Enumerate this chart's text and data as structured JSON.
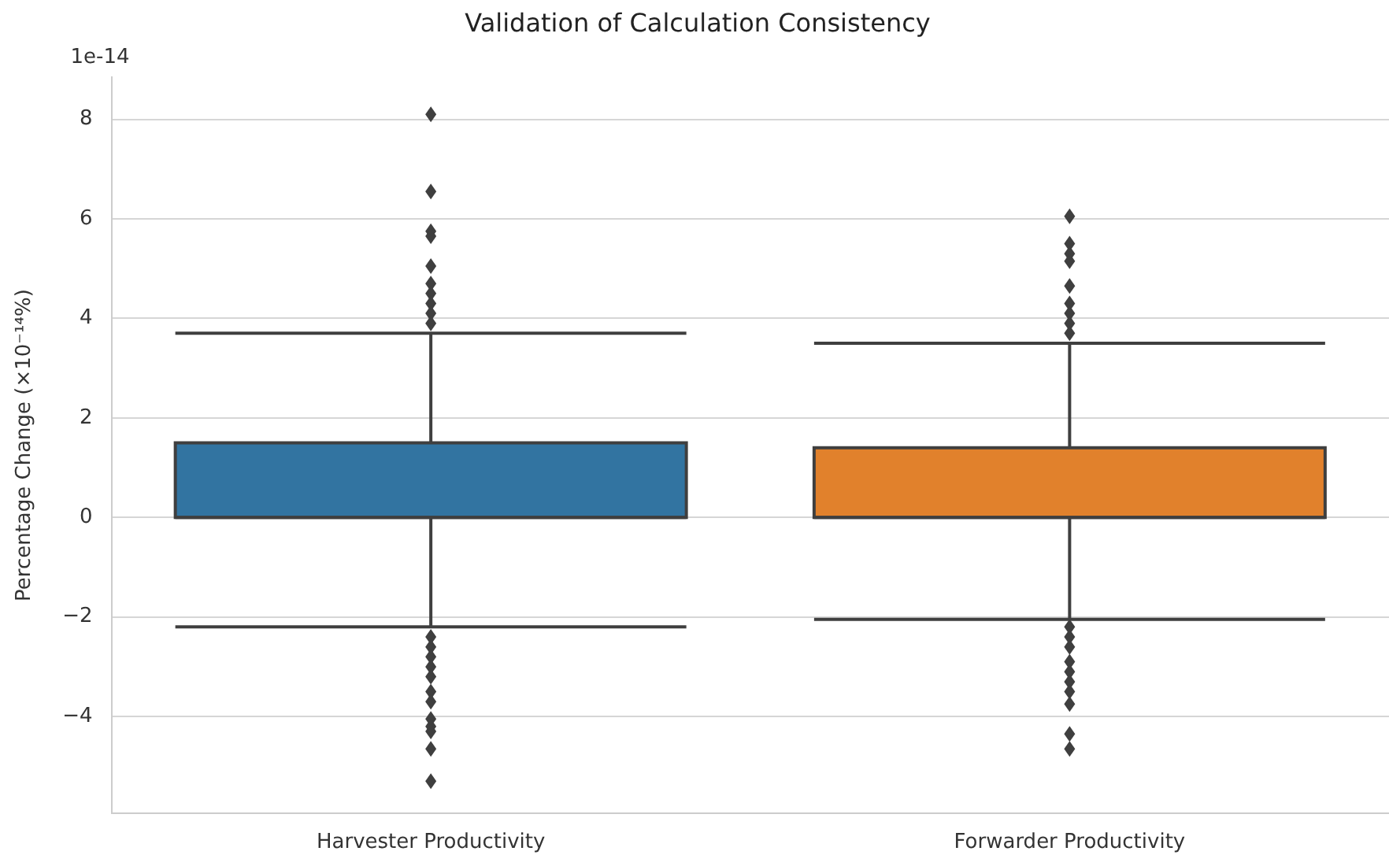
{
  "chart_data": {
    "type": "box",
    "title": "Validation of Calculation Consistency",
    "ylabel": "Percentage Change (×10⁻¹⁴%)",
    "annotations": [
      "1e-14"
    ],
    "categories": [
      "Harvester Productivity",
      "Forwarder Productivity"
    ],
    "colors": [
      "#3274a1",
      "#e1812c"
    ],
    "boxes": [
      {
        "low": -2.2,
        "q1": 0,
        "median": 0,
        "q3": 1.5,
        "high": 3.7,
        "outliers": [
          8.1,
          6.55,
          5.75,
          5.65,
          5.05,
          4.7,
          4.5,
          4.3,
          4.1,
          3.9,
          -2.4,
          -2.6,
          -2.8,
          -3.0,
          -3.2,
          -3.5,
          -3.7,
          -4.05,
          -4.2,
          -4.3,
          -4.65,
          -5.3
        ]
      },
      {
        "low": -2.05,
        "q1": 0,
        "median": 0,
        "q3": 1.4,
        "high": 3.5,
        "outliers": [
          6.05,
          5.5,
          5.3,
          5.15,
          4.65,
          4.3,
          4.1,
          3.9,
          3.7,
          -2.2,
          -2.4,
          -2.6,
          -2.9,
          -3.1,
          -3.3,
          -3.5,
          -3.75,
          -4.35,
          -4.65
        ]
      }
    ],
    "ylim": [
      -5.94,
      8.84
    ],
    "yticks": [
      -4,
      -2,
      0,
      2,
      4,
      6,
      8
    ],
    "grid": "y",
    "legend": false
  }
}
